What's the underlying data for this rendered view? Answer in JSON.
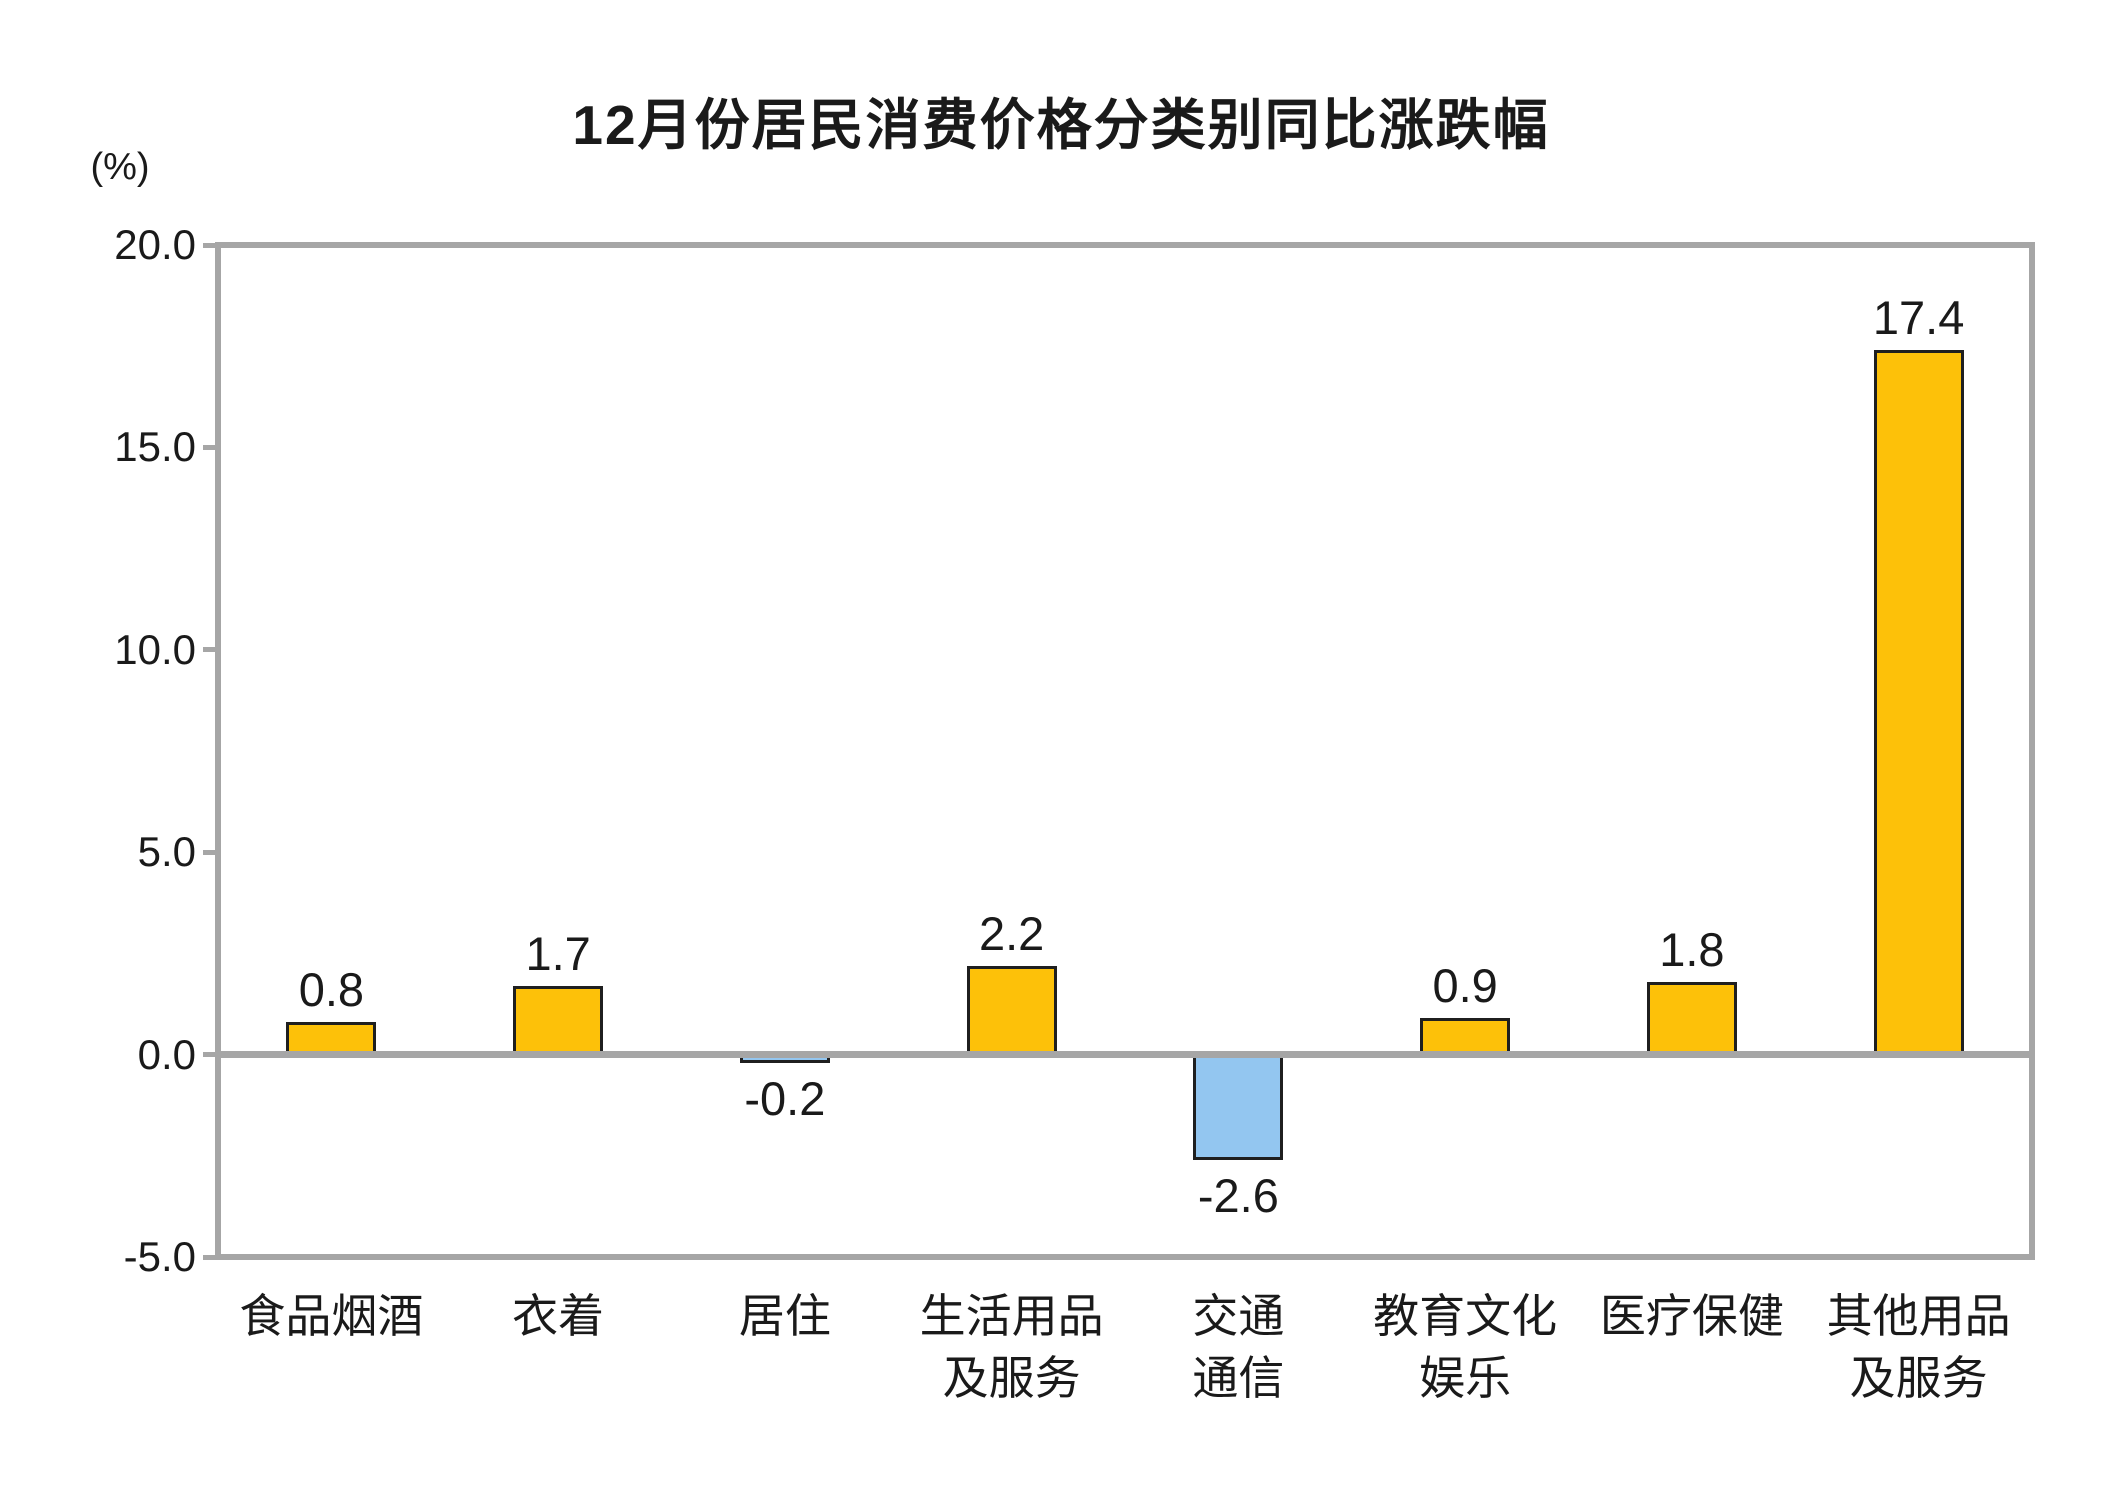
{
  "chart_data": {
    "type": "bar",
    "title": "12月份居民消费价格分类别同比涨跌幅",
    "ylabel": "(%)",
    "xlabel": "",
    "categories": [
      "食品烟酒",
      "衣着",
      "居住",
      "生活用品\n及服务",
      "交通\n通信",
      "教育文化\n娱乐",
      "医疗保健",
      "其他用品\n及服务"
    ],
    "values": [
      0.8,
      1.7,
      -0.2,
      2.2,
      -2.6,
      0.9,
      1.8,
      17.4
    ],
    "value_labels": [
      "0.8",
      "1.7",
      "-0.2",
      "2.2",
      "-2.6",
      "0.9",
      "1.8",
      "17.4"
    ],
    "yticks": [
      20.0,
      15.0,
      10.0,
      5.0,
      0.0,
      -5.0
    ],
    "ytick_labels": [
      "20.0",
      "15.0",
      "10.0",
      "5.0",
      "0.0",
      "-5.0"
    ],
    "ylim": [
      -5.0,
      20.0
    ],
    "grid": false,
    "legend_position": "none",
    "colors": {
      "positive_bar": "#FDC109",
      "negative_bar": "#93C6F0",
      "bar_border": "#1F1F1F",
      "axis": "#A6A6A6",
      "text": "#1A1A1A",
      "background": "#FFFFFF"
    }
  }
}
